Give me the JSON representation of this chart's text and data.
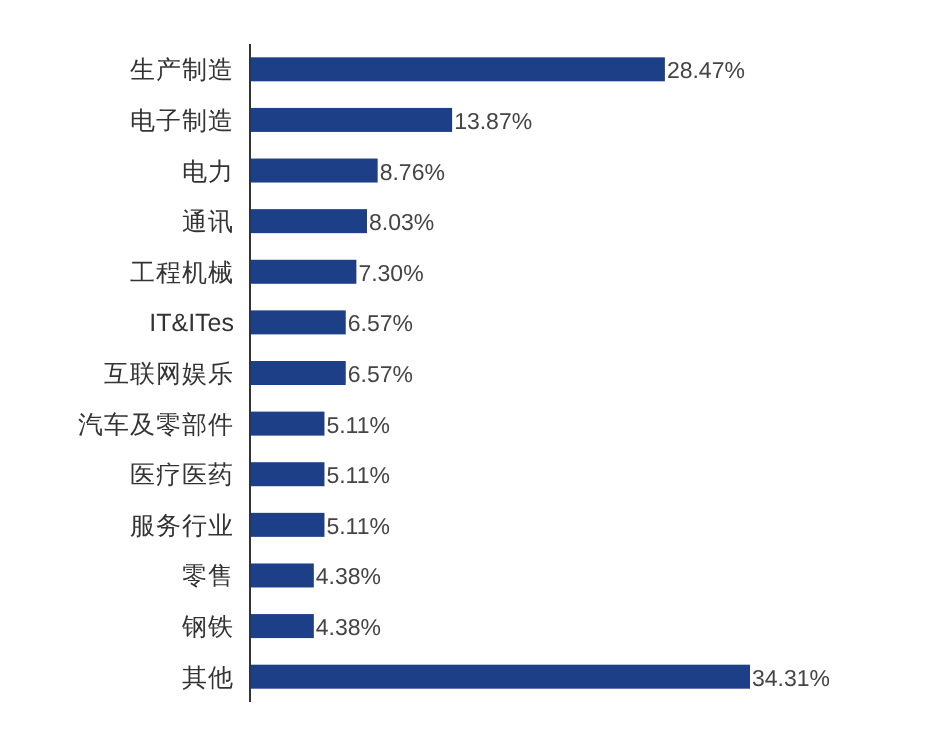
{
  "chart_data": {
    "type": "bar",
    "orientation": "horizontal",
    "categories": [
      "生产制造",
      "电子制造",
      "电力",
      "通讯",
      "工程机械",
      "IT&ITes",
      "互联网娱乐",
      "汽车及零部件",
      "医疗医药",
      "服务行业",
      "零售",
      "钢铁",
      "其他"
    ],
    "values": [
      28.47,
      13.87,
      8.76,
      8.03,
      7.3,
      6.57,
      6.57,
      5.11,
      5.11,
      5.11,
      4.38,
      4.38,
      34.31
    ],
    "value_labels": [
      "28.47%",
      "13.87%",
      "8.76%",
      "8.03%",
      "7.30%",
      "6.57%",
      "6.57%",
      "5.11%",
      "5.11%",
      "5.11%",
      "4.38%",
      "4.38%",
      "34.31%"
    ],
    "color": "#1c3f87"
  }
}
